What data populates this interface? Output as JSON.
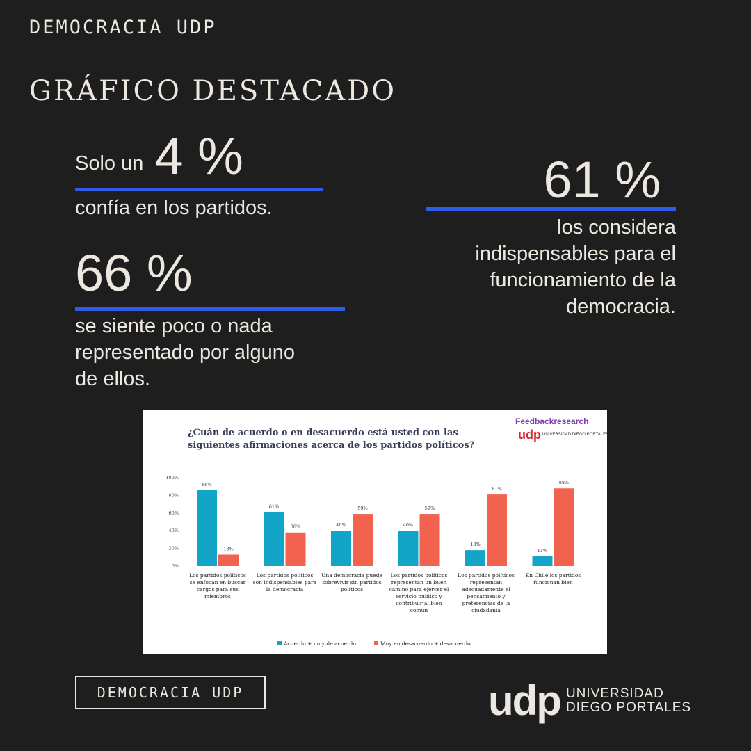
{
  "header": {
    "brand": "DEMOCRACIA UDP",
    "title": "GRÁFICO DESTACADO"
  },
  "stats": {
    "s1": {
      "prefix": "Solo un",
      "value": "4 %",
      "text": "confía en los partidos."
    },
    "s2": {
      "value": "66 %",
      "lines": [
        "se siente poco o nada",
        "representado por alguno",
        "de ellos."
      ]
    },
    "s3": {
      "value": "61 %",
      "lines": [
        "los considera",
        "indispensables para el",
        "funcionamiento de la",
        "democracia."
      ]
    }
  },
  "colors": {
    "accent_line": "#2f5ce6",
    "series_agree": "#12a5c8",
    "series_disagree": "#f2634f",
    "background": "#1e1e1e"
  },
  "chart_data": {
    "type": "bar",
    "title": "¿Cuán de acuerdo o en desacuerdo está usted con las siguientes afirmaciones acerca de los partidos políticos?",
    "title_lines": [
      "¿Cuán de acuerdo o en desacuerdo está usted con las",
      "siguientes afirmaciones acerca de los partidos políticos?"
    ],
    "categories": [
      "Los partidos políticos se enfocan en buscar cargos para sus miembros",
      "Los partidos políticos son indispensables para la democracia",
      "Una democracia puede sobrevivir sin partidos políticos",
      "Los partidos políticos representan un buen camino para ejercer el servicio público y contribuir al bien común",
      "Los partidos políticos representan adecuadamente el pensamiento y preferencias de la ciudadanía",
      "En Chile los partidos funcionan bien"
    ],
    "category_lines": [
      [
        "Los partidos políticos",
        "se enfocan en buscar",
        "cargos para sus",
        "miembros"
      ],
      [
        "Los partidos políticos",
        "son indispensables para",
        "la democracia"
      ],
      [
        "Una democracia puede",
        "sobrevivir sin partidos",
        "políticos"
      ],
      [
        "Los partidos políticos",
        "representan un buen",
        "camino para ejercer el",
        "servicio público y",
        "contribuir al bien",
        "común"
      ],
      [
        "Los partidos políticos",
        "representan",
        "adecuadamente el",
        "pensamiento y",
        "preferencias de la",
        "ciudadanía"
      ],
      [
        "En Chile los partidos",
        "funcionan bien"
      ]
    ],
    "series": [
      {
        "name": "Acuerdo + muy de acuerdo",
        "values": [
          86,
          61,
          40,
          40,
          18,
          11
        ],
        "color": "#12a5c8"
      },
      {
        "name": "Muy en desacuerdo + desacuerdo",
        "values": [
          13,
          38,
          59,
          59,
          81,
          88
        ],
        "color": "#f2634f"
      }
    ],
    "yticks": [
      "0%",
      "20%",
      "40%",
      "60%",
      "80%",
      "100%"
    ],
    "ylim": [
      0,
      100
    ],
    "legend_position": "bottom",
    "grid": false,
    "logos": [
      "Feedbackresearch",
      "udp",
      "UNIVERSIDAD DIEGO PORTALES"
    ]
  },
  "footer": {
    "brand_box": "DEMOCRACIA UDP",
    "logo_mark": "udp",
    "logo_line1": "UNIVERSIDAD",
    "logo_line2": "DIEGO PORTALES"
  }
}
